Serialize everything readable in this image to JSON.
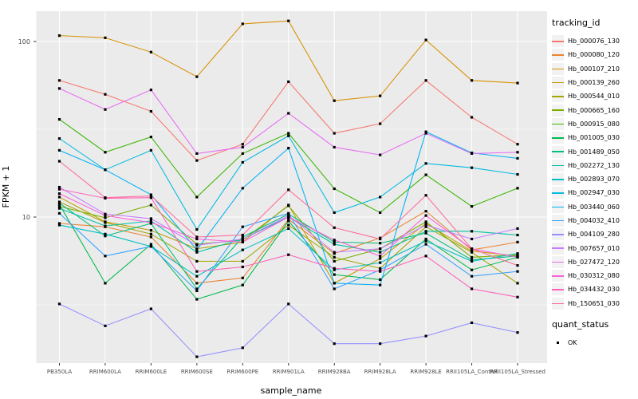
{
  "chart_data": {
    "type": "line",
    "title": "",
    "xlabel": "sample_name",
    "ylabel": "FPKM + 1",
    "y_scale": "log10",
    "ylim": [
      1.33,
      150
    ],
    "y_ticks": [
      {
        "value": 100,
        "label": "100"
      },
      {
        "value": 10,
        "label": "10"
      }
    ],
    "y_minor": [
      3.1623,
      31.623
    ],
    "grid": "on",
    "panel_bg": "#EBEBEB",
    "grid_color": "#FFFFFF",
    "point_marker": "square",
    "point_color": "#000000",
    "categories": [
      "PB350LA",
      "RRIM600LA",
      "RRIM600LE",
      "RRIM600SE",
      "RRIM600PE",
      "RRIM901LA",
      "RRIM928BA",
      "RRIM928LA",
      "RRIM928LE",
      "RRII105LA_Control",
      "RRII105LA_Stressed"
    ],
    "series": [
      {
        "name": "Hb_000076_130",
        "color": "#F8766D",
        "values": [
          60,
          50,
          40,
          21,
          26,
          59,
          30,
          34,
          60,
          37,
          26
        ]
      },
      {
        "name": "Hb_000080_120",
        "color": "#EA8331",
        "values": [
          9.2,
          8.8,
          7.7,
          4.2,
          4.5,
          9.7,
          6.2,
          7.6,
          10.8,
          6.5,
          7.2
        ]
      },
      {
        "name": "Hb_000107_210",
        "color": "#D89000",
        "values": [
          108,
          105,
          87,
          63,
          126,
          131,
          46,
          49,
          102,
          60,
          58
        ]
      },
      {
        "name": "Hb_000139_260",
        "color": "#C09B00",
        "values": [
          13.0,
          9.4,
          8.4,
          6.6,
          7.2,
          11.7,
          4.2,
          5.8,
          9.2,
          6.4,
          6.0
        ]
      },
      {
        "name": "Hb_000544_010",
        "color": "#A3A500",
        "values": [
          12.2,
          9.3,
          8.0,
          5.6,
          5.6,
          9.0,
          5.9,
          5.1,
          8.8,
          6.3,
          4.2
        ]
      },
      {
        "name": "Hb_000665_160",
        "color": "#7CAE00",
        "values": [
          11.5,
          9.9,
          11.7,
          7.0,
          7.4,
          11.6,
          5.6,
          6.6,
          9.4,
          5.9,
          6.1
        ]
      },
      {
        "name": "Hb_000915_080",
        "color": "#39B600",
        "values": [
          36,
          23.4,
          28.6,
          13,
          23,
          30,
          14.5,
          10.6,
          17.4,
          11.5,
          14.6
        ]
      },
      {
        "name": "Hb_001005_030",
        "color": "#00BB4E",
        "values": [
          11.8,
          4.2,
          7.0,
          3.4,
          4.1,
          9.5,
          4.7,
          4.4,
          7.5,
          5.0,
          5.9
        ]
      },
      {
        "name": "Hb_001489_050",
        "color": "#00BF7D",
        "values": [
          12.0,
          7.8,
          9.2,
          3.9,
          7.7,
          10.4,
          7.2,
          7.1,
          8.1,
          5.7,
          6.0
        ]
      },
      {
        "name": "Hb_002272_130",
        "color": "#00C1A3",
        "values": [
          11.2,
          8.9,
          9.5,
          6.3,
          7.5,
          10.0,
          7.0,
          6.3,
          8.3,
          8.3,
          7.9
        ]
      },
      {
        "name": "Hb_002893_070",
        "color": "#00BFC4",
        "values": [
          9.0,
          8.0,
          6.8,
          4.6,
          6.5,
          8.6,
          5.0,
          5.5,
          7.3,
          5.6,
          6.2
        ]
      },
      {
        "name": "Hb_002947_030",
        "color": "#00BAE0",
        "values": [
          28,
          18.6,
          24,
          8.5,
          20.5,
          29,
          10.6,
          13,
          20.2,
          19.1,
          17.5
        ]
      },
      {
        "name": "Hb_003440_060",
        "color": "#00B0F6",
        "values": [
          24,
          18.6,
          13.4,
          6.5,
          14.6,
          24.7,
          4.2,
          4.1,
          30.6,
          23.2,
          21.6
        ]
      },
      {
        "name": "Hb_004032_410",
        "color": "#35A2FF",
        "values": [
          10.5,
          6.0,
          6.8,
          3.8,
          8.8,
          10.5,
          3.9,
          5.0,
          7.0,
          4.6,
          4.9
        ]
      },
      {
        "name": "Hb_004109_280",
        "color": "#9590FF",
        "values": [
          3.2,
          2.4,
          3.0,
          1.6,
          1.8,
          3.2,
          1.9,
          1.9,
          2.1,
          2.5,
          2.2
        ]
      },
      {
        "name": "Hb_007657_010",
        "color": "#C77CFF",
        "values": [
          14.8,
          10.4,
          9.8,
          6.9,
          7.5,
          10.2,
          6.3,
          6.6,
          9.0,
          7.5,
          8.6
        ]
      },
      {
        "name": "Hb_027472_120",
        "color": "#E76BF3",
        "values": [
          54,
          41,
          53,
          23,
          25,
          39,
          25,
          22.6,
          30,
          23,
          23.4
        ]
      },
      {
        "name": "Hb_030312_080",
        "color": "#FA62DB",
        "values": [
          13.6,
          10.2,
          9.3,
          7.5,
          7.2,
          10.0,
          7.4,
          6.0,
          10.2,
          6.6,
          5.9
        ]
      },
      {
        "name": "Hb_034432_030",
        "color": "#FF62BC",
        "values": [
          14.4,
          12.8,
          12.9,
          4.9,
          5.2,
          6.1,
          5.1,
          4.9,
          6.0,
          3.9,
          3.5
        ]
      },
      {
        "name": "Hb_150651_030",
        "color": "#FF6A98",
        "values": [
          20.8,
          12.9,
          13.2,
          7.7,
          7.9,
          14.3,
          8.7,
          7.5,
          13.3,
          6.6,
          5.3
        ]
      }
    ],
    "legend": {
      "position": "right",
      "tracking_title": "tracking_id",
      "quant_title": "quant_status",
      "quant_entries": [
        {
          "label": "OK",
          "marker": "square",
          "color": "#000000"
        }
      ]
    }
  }
}
